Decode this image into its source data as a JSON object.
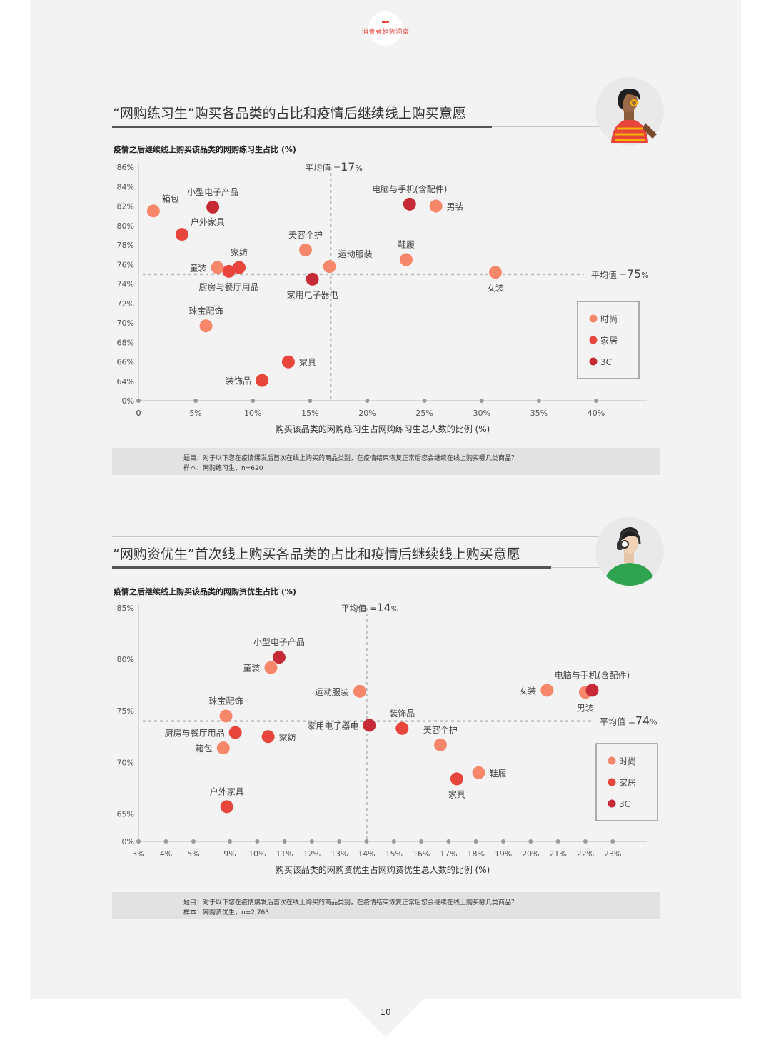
{
  "header": {
    "label": "消费者趋势洞察"
  },
  "colors": {
    "fashion": "#f7876b",
    "home": "#e8453c",
    "tech": "#c62a37",
    "accent": "#e8453c",
    "avatar1_shirt": "#e8453c",
    "avatar2_shirt": "#2fa34f"
  },
  "icons": {
    "avatar1": "woman-avatar-icon",
    "avatar2": "headphone-man-avatar-icon"
  },
  "page_number": "10",
  "chart_data": [
    {
      "type": "scatter",
      "title": "“网购练习生”购买各品类的占比和疫情后继续线上购买意愿",
      "ylabel": "疫情之后继续线上购买该品类的网购练习生占比 (%)",
      "xlabel": "购买该品类的网购练习生占网购练习生总人数的比例 (%)",
      "x_ticks": [
        0,
        5,
        10,
        15,
        20,
        25,
        30,
        35,
        40
      ],
      "x_tick_labels": [
        "0",
        "5%",
        "10%",
        "15%",
        "20%",
        "25%",
        "30%",
        "35%",
        "40%"
      ],
      "y_ticks": [
        64,
        66,
        68,
        70,
        72,
        74,
        76,
        78,
        80,
        82,
        84,
        86
      ],
      "y_tick_labels": [
        "64%",
        "66%",
        "68%",
        "70%",
        "72%",
        "74%",
        "76%",
        "78%",
        "80%",
        "82%",
        "84%",
        "86%"
      ],
      "y_zero_label": "0%",
      "xlim": [
        0,
        40.5
      ],
      "ylim": [
        64,
        86
      ],
      "avg_x": 16.8,
      "avg_x_label_prefix": "平均值 =",
      "avg_x_label_value": "17",
      "avg_x_label_suffix": "%",
      "avg_y": 75,
      "avg_y_label_prefix": "平均值 =",
      "avg_y_label_value": "75",
      "avg_y_label_suffix": "%",
      "legend": [
        {
          "group": "fashion",
          "label": "时尚"
        },
        {
          "group": "home",
          "label": "家居"
        },
        {
          "group": "tech",
          "label": "3C"
        }
      ],
      "points": [
        {
          "label": "箱包",
          "x": 1.3,
          "y": 81.5,
          "group": "fashion",
          "pos": "ne"
        },
        {
          "label": "小型电子产品",
          "x": 6.5,
          "y": 81.9,
          "group": "tech",
          "pos": "n"
        },
        {
          "label": "户外家具",
          "x": 3.8,
          "y": 79.1,
          "group": "home",
          "pos": "ne"
        },
        {
          "label": "童装",
          "x": 6.9,
          "y": 75.7,
          "group": "fashion",
          "pos": "w"
        },
        {
          "label": "厨房与餐厅用品",
          "x": 7.9,
          "y": 75.3,
          "group": "home",
          "pos": "s"
        },
        {
          "label": "家纺",
          "x": 8.8,
          "y": 75.7,
          "group": "home",
          "pos": "n"
        },
        {
          "label": "珠宝配饰",
          "x": 5.9,
          "y": 69.7,
          "group": "fashion",
          "pos": "n"
        },
        {
          "label": "装饰品",
          "x": 10.8,
          "y": 64.1,
          "group": "home",
          "pos": "w"
        },
        {
          "label": "家具",
          "x": 13.1,
          "y": 66.0,
          "group": "home",
          "pos": "e"
        },
        {
          "label": "美容个护",
          "x": 14.6,
          "y": 77.5,
          "group": "fashion",
          "pos": "n"
        },
        {
          "label": "运动服装",
          "x": 16.7,
          "y": 75.8,
          "group": "fashion",
          "pos": "ne"
        },
        {
          "label": "家用电子器电",
          "x": 15.2,
          "y": 74.5,
          "group": "tech",
          "pos": "s"
        },
        {
          "label": "电脑与手机(含配件)",
          "x": 23.7,
          "y": 82.2,
          "group": "tech",
          "pos": "n"
        },
        {
          "label": "男装",
          "x": 26.0,
          "y": 82.0,
          "group": "fashion",
          "pos": "e"
        },
        {
          "label": "鞋履",
          "x": 23.4,
          "y": 76.5,
          "group": "fashion",
          "pos": "n"
        },
        {
          "label": "女装",
          "x": 31.2,
          "y": 75.2,
          "group": "fashion",
          "pos": "s"
        }
      ],
      "note_q": "题目：对于以下您在疫情爆发后首次在线上购买的商品类别，在疫情结束恢复正常后您会继续在线上购买哪几类商品？",
      "note_s": "样本：网购练习生，n=620"
    },
    {
      "type": "scatter",
      "title": "“网购资优生”首次线上购买各品类的占比和疫情后继续线上购买意愿",
      "ylabel": "疫情之后继续线上购买该品类的网购资优生占比 (%)",
      "xlabel": "购买该品类的网购资优生占网购资优生总人数的比例 (%)",
      "x_ticks": [
        3,
        4,
        5,
        9,
        10,
        11,
        12,
        13,
        14,
        15,
        16,
        17,
        18,
        19,
        20,
        21,
        22,
        23
      ],
      "x_tick_labels": [
        "3%",
        "4%",
        "5%",
        "9%",
        "10%",
        "11%",
        "12%",
        "13%",
        "14%",
        "15%",
        "16%",
        "17%",
        "18%",
        "19%",
        "20%",
        "21%",
        "22%",
        "23%"
      ],
      "y_ticks": [
        65,
        70,
        75,
        80,
        85
      ],
      "y_tick_labels": [
        "65%",
        "70%",
        "75%",
        "80%",
        "85%"
      ],
      "y_zero_label": "0%",
      "ylim": [
        64.2,
        85
      ],
      "avg_x": 14,
      "avg_x_label_prefix": "平均值 =",
      "avg_x_label_value": "14",
      "avg_x_label_suffix": "%",
      "avg_y": 74,
      "avg_y_label_prefix": "平均值 =",
      "avg_y_label_value": "74",
      "avg_y_label_suffix": "%",
      "legend": [
        {
          "group": "fashion",
          "label": "时尚"
        },
        {
          "group": "home",
          "label": "家居"
        },
        {
          "group": "tech",
          "label": "3C"
        }
      ],
      "points": [
        {
          "label": "小型电子产品",
          "x": 10.8,
          "y": 80.2,
          "group": "tech",
          "pos": "n"
        },
        {
          "label": "童装",
          "x": 10.5,
          "y": 79.2,
          "group": "fashion",
          "pos": "w"
        },
        {
          "label": "运动服装",
          "x": 13.75,
          "y": 76.9,
          "group": "fashion",
          "pos": "w"
        },
        {
          "label": "珠宝配饰",
          "x": 8.7,
          "y": 74.5,
          "group": "fashion",
          "pos": "n"
        },
        {
          "label": "厨房与餐厅用品",
          "x": 9.2,
          "y": 72.9,
          "group": "home",
          "pos": "w"
        },
        {
          "label": "家纺",
          "x": 10.4,
          "y": 72.5,
          "group": "home",
          "pos": "e"
        },
        {
          "label": "箱包",
          "x": 8.4,
          "y": 71.4,
          "group": "fashion",
          "pos": "w"
        },
        {
          "label": "户外家具",
          "x": 8.8,
          "y": 65.7,
          "group": "home",
          "pos": "n"
        },
        {
          "label": "家用电子器电",
          "x": 14.1,
          "y": 73.6,
          "group": "tech",
          "pos": "w"
        },
        {
          "label": "装饰品",
          "x": 15.3,
          "y": 73.3,
          "group": "home",
          "pos": "n"
        },
        {
          "label": "美容个护",
          "x": 16.7,
          "y": 71.7,
          "group": "fashion",
          "pos": "n"
        },
        {
          "label": "鞋履",
          "x": 18.1,
          "y": 69.0,
          "group": "fashion",
          "pos": "e"
        },
        {
          "label": "家具",
          "x": 17.3,
          "y": 68.4,
          "group": "home",
          "pos": "s"
        },
        {
          "label": "女装",
          "x": 20.6,
          "y": 77.0,
          "group": "fashion",
          "pos": "w"
        },
        {
          "label": "男装",
          "x": 22.0,
          "y": 76.8,
          "group": "fashion",
          "pos": "s"
        },
        {
          "label": "电脑与手机(含配件)",
          "x": 22.25,
          "y": 77.0,
          "group": "tech",
          "pos": "n"
        }
      ],
      "note_q": "题目：对于以下您在疫情爆发后首次在线上购买的商品类别，在疫情结束恢复正常后您会继续在线上购买哪几类商品？",
      "note_s": "样本：网购资优生，n=2,763"
    }
  ]
}
